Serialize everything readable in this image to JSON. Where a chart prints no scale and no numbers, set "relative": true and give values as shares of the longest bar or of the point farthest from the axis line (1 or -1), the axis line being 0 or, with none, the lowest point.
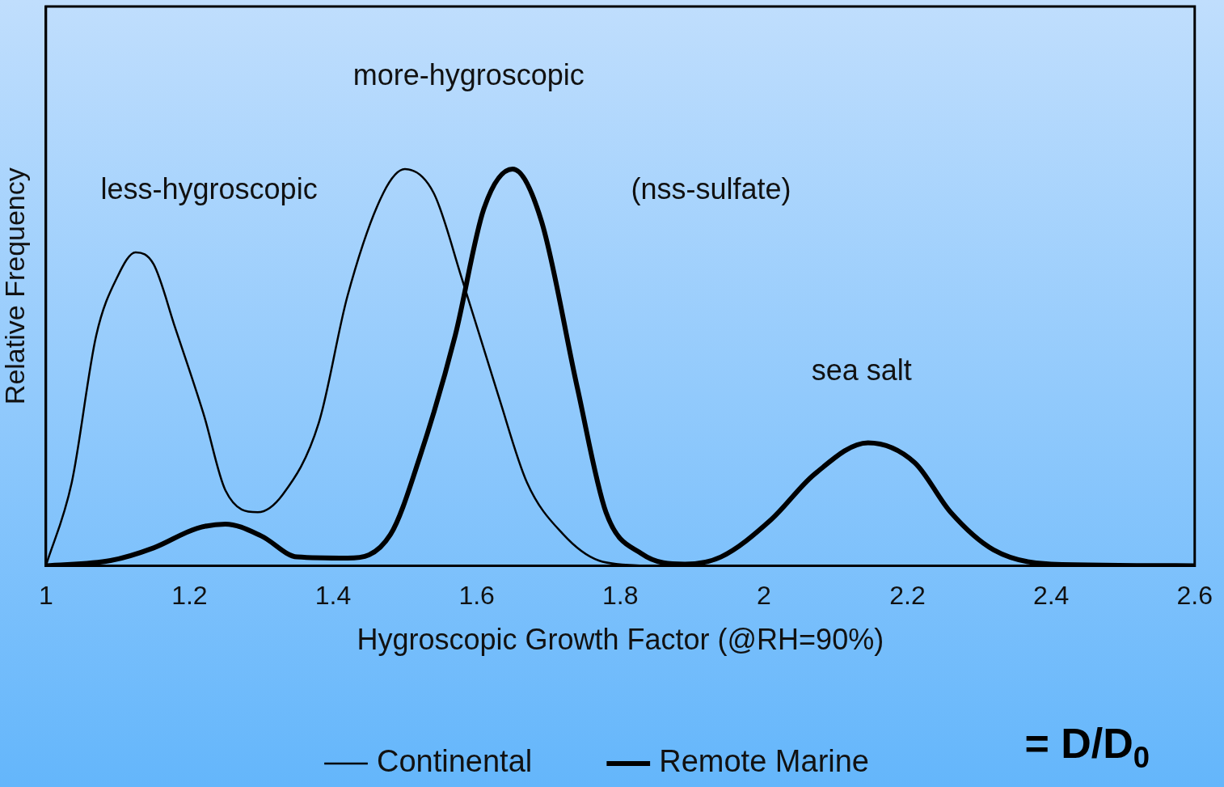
{
  "chart_data": {
    "type": "line",
    "relative": true,
    "xlabel": "Hygroscopic Growth Factor (@RH=90%)",
    "ylabel": "Relative Frequency",
    "xlim": [
      1,
      2.6
    ],
    "xticks": [
      1,
      1.2,
      1.4,
      1.6,
      1.8,
      2,
      2.2,
      2.4,
      2.6
    ],
    "grid": false,
    "legend": "bottom",
    "marker": "none",
    "line_style": "solid",
    "series": [
      {
        "name": "Continental",
        "color": "#000000",
        "x": [
          1.0,
          1.036,
          1.07,
          1.1,
          1.125,
          1.15,
          1.18,
          1.22,
          1.25,
          1.295,
          1.33,
          1.38,
          1.42,
          1.47,
          1.5,
          1.54,
          1.58,
          1.63,
          1.67,
          1.72,
          1.77,
          1.83
        ],
        "values": [
          0,
          0.21,
          0.58,
          0.73,
          0.79,
          0.76,
          0.6,
          0.38,
          0.19,
          0.135,
          0.18,
          0.36,
          0.68,
          0.94,
          1.0,
          0.94,
          0.72,
          0.43,
          0.21,
          0.08,
          0.013,
          0
        ]
      },
      {
        "name": "Remote Marine",
        "color": "#000000",
        "x": [
          1.0,
          1.09,
          1.15,
          1.21,
          1.25,
          1.3,
          1.35,
          1.42,
          1.48,
          1.52,
          1.57,
          1.61,
          1.65,
          1.69,
          1.74,
          1.78,
          1.83,
          1.89,
          1.94,
          2.01,
          2.07,
          2.145,
          2.21,
          2.26,
          2.32,
          2.4,
          2.6
        ],
        "values": [
          0,
          0.013,
          0.045,
          0.094,
          0.105,
          0.075,
          0.022,
          0.019,
          0.079,
          0.27,
          0.58,
          0.9,
          1.0,
          0.87,
          0.45,
          0.135,
          0.03,
          0.004,
          0.022,
          0.116,
          0.23,
          0.31,
          0.26,
          0.135,
          0.04,
          0.004,
          0
        ]
      }
    ],
    "annotations": [
      "less-hygroscopic",
      "more-hygroscopic",
      "(nss-sulfate)",
      "sea salt",
      "= D/D$_{0}$"
    ]
  }
}
